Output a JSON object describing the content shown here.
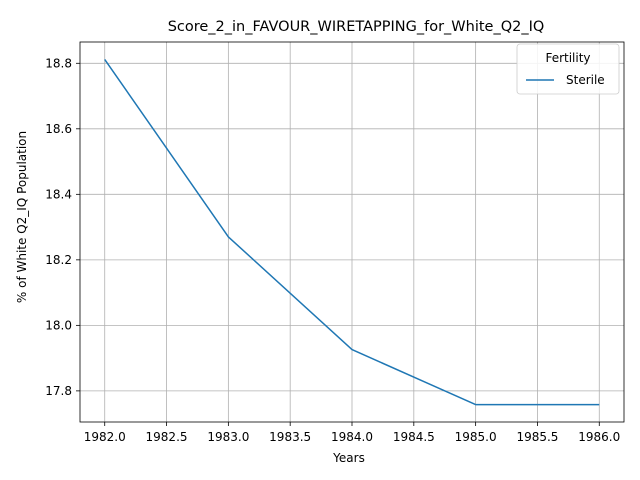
{
  "chart_data": {
    "type": "line",
    "title": "Score_2_in_FAVOUR_WIRETAPPING_for_White_Q2_IQ",
    "xlabel": "Years",
    "ylabel": "% of White Q2_IQ Population",
    "x": [
      1982,
      1983,
      1984,
      1985,
      1986
    ],
    "series": [
      {
        "name": "Sterile",
        "values": [
          18.812,
          18.27,
          17.926,
          17.758,
          17.758
        ],
        "color": "#1f77b4"
      }
    ],
    "xlim": [
      1981.8,
      1986.2
    ],
    "ylim": [
      17.705,
      18.865
    ],
    "xticks": [
      1982.0,
      1982.5,
      1983.0,
      1983.5,
      1984.0,
      1984.5,
      1985.0,
      1985.5,
      1986.0
    ],
    "xtick_labels": [
      "1982.0",
      "1982.5",
      "1983.0",
      "1983.5",
      "1984.0",
      "1984.5",
      "1985.0",
      "1985.5",
      "1986.0"
    ],
    "yticks": [
      17.8,
      18.0,
      18.2,
      18.4,
      18.6,
      18.8
    ],
    "ytick_labels": [
      "17.8",
      "18.0",
      "18.2",
      "18.4",
      "18.6",
      "18.8"
    ],
    "grid": true,
    "legend": {
      "title": "Fertility",
      "placement": "top-right"
    }
  }
}
